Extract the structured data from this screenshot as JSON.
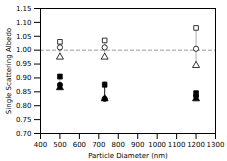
{
  "chart_data": {
    "type": "scatter",
    "xlabel": "Particle Diameter (nm)",
    "ylabel": "Single Scattering Albedo",
    "xlim": [
      400,
      1300
    ],
    "ylim": [
      0.7,
      1.15
    ],
    "xticks": [
      400,
      500,
      600,
      700,
      800,
      900,
      1000,
      1100,
      1200,
      1300
    ],
    "yticks": [
      {
        "value": 0.7,
        "label": "0.70"
      },
      0.75,
      {
        "value": 0.8,
        "label": "0.80"
      },
      0.85,
      {
        "value": 0.9,
        "label": "0.90"
      },
      0.95,
      {
        "value": 1.0,
        "label": "1.00"
      },
      1.05,
      {
        "value": 1.1,
        "label": "1.10"
      },
      1.15
    ],
    "hline": 1.0,
    "x": [
      500,
      730,
      1200
    ],
    "series": [
      {
        "color": "black",
        "marker": "open_square",
        "values": [
          1.03,
          1.035,
          1.08
        ]
      },
      {
        "color": "black",
        "marker": "open_circle",
        "values": [
          1.01,
          1.01,
          1.005
        ]
      },
      {
        "color": "black",
        "marker": "open_triangle",
        "values": [
          0.975,
          0.975,
          0.945
        ]
      },
      {
        "color": "black",
        "marker": "square",
        "values": [
          0.905,
          0.875,
          0.845
        ],
        "yerr_lo": [
          0.008,
          0.05,
          0.008
        ],
        "yerr_hi": [
          0.008,
          0.01,
          0.008
        ]
      },
      {
        "color": "black",
        "marker": "circle",
        "values": [
          0.875,
          0.825,
          0.835
        ]
      },
      {
        "color": "black",
        "marker": "triangle",
        "values": [
          0.865,
          0.825,
          0.825
        ]
      }
    ]
  }
}
